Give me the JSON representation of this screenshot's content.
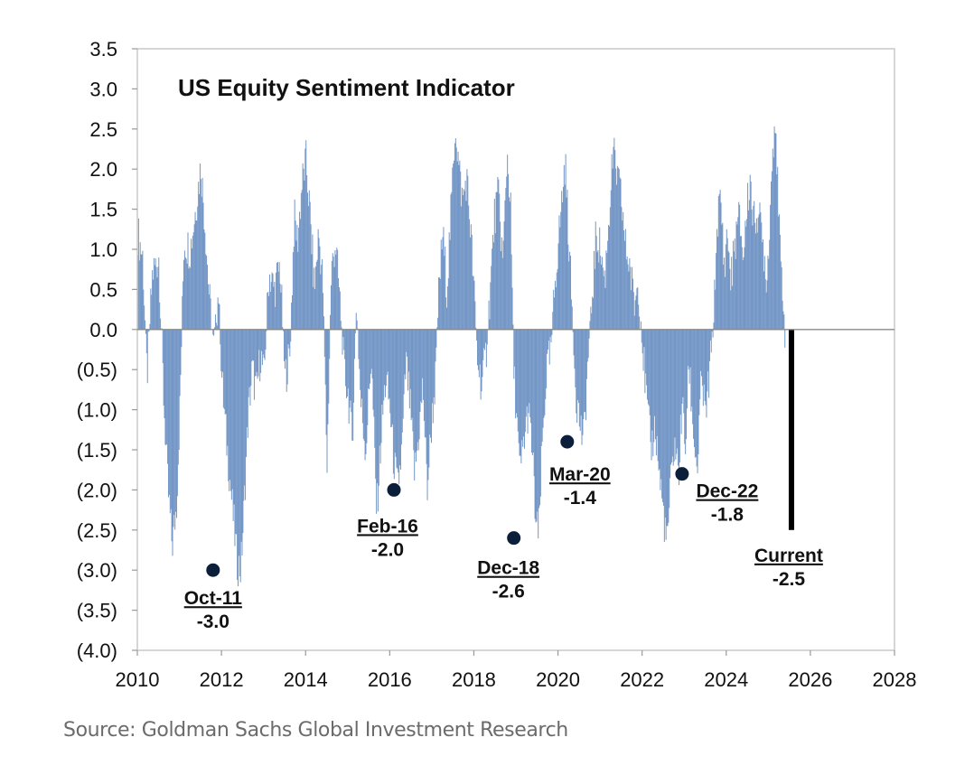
{
  "chart_data": {
    "type": "bar",
    "title": "US Equity Sentiment Indicator",
    "xlabel": "",
    "ylabel": "",
    "xlim": [
      2010,
      2028
    ],
    "ylim": [
      -4.0,
      3.5
    ],
    "x_ticks": [
      "2010",
      "2012",
      "2014",
      "2016",
      "2018",
      "2020",
      "2022",
      "2024",
      "2026",
      "2028"
    ],
    "y_ticks": [
      {
        "value": 3.5,
        "label": "3.5"
      },
      {
        "value": 3.0,
        "label": "3.0"
      },
      {
        "value": 2.5,
        "label": "2.5"
      },
      {
        "value": 2.0,
        "label": "2.0"
      },
      {
        "value": 1.5,
        "label": "1.5"
      },
      {
        "value": 1.0,
        "label": "1.0"
      },
      {
        "value": 0.5,
        "label": "0.5"
      },
      {
        "value": 0.0,
        "label": "0.0"
      },
      {
        "value": -0.5,
        "label": "(0.5)"
      },
      {
        "value": -1.0,
        "label": "(1.0)"
      },
      {
        "value": -1.5,
        "label": "(1.5)"
      },
      {
        "value": -2.0,
        "label": "(2.0)"
      },
      {
        "value": -2.5,
        "label": "(2.5)"
      },
      {
        "value": -3.0,
        "label": "(3.0)"
      },
      {
        "value": -3.5,
        "label": "(3.5)"
      },
      {
        "value": -4.0,
        "label": "(4.0)"
      }
    ],
    "grid": false,
    "series_color": "#7396c6",
    "current_bar_color": "#000000",
    "marker_color": "#0b1f3a",
    "series_keypoints": [
      [
        2010.0,
        1.2
      ],
      [
        2010.12,
        0.9
      ],
      [
        2010.22,
        -0.6
      ],
      [
        2010.35,
        0.7
      ],
      [
        2010.5,
        0.9
      ],
      [
        2010.62,
        -0.9
      ],
      [
        2010.72,
        -2.0
      ],
      [
        2010.82,
        -2.7
      ],
      [
        2010.92,
        -2.2
      ],
      [
        2011.0,
        -1.0
      ],
      [
        2011.1,
        1.1
      ],
      [
        2011.25,
        1.0
      ],
      [
        2011.4,
        1.6
      ],
      [
        2011.5,
        2.05
      ],
      [
        2011.6,
        1.3
      ],
      [
        2011.7,
        0.4
      ],
      [
        2011.8,
        -0.2
      ],
      [
        2011.92,
        0.5
      ],
      [
        2012.0,
        -0.6
      ],
      [
        2012.08,
        -1.2
      ],
      [
        2012.18,
        -1.8
      ],
      [
        2012.28,
        -2.4
      ],
      [
        2012.36,
        -2.9
      ],
      [
        2012.45,
        -3.0
      ],
      [
        2012.53,
        -2.2
      ],
      [
        2012.62,
        -1.1
      ],
      [
        2012.72,
        -0.5
      ],
      [
        2012.82,
        -0.8
      ],
      [
        2012.92,
        -0.3
      ],
      [
        2013.0,
        -0.6
      ],
      [
        2013.12,
        0.7
      ],
      [
        2013.25,
        0.5
      ],
      [
        2013.38,
        0.8
      ],
      [
        2013.5,
        -0.6
      ],
      [
        2013.62,
        -0.3
      ],
      [
        2013.72,
        1.4
      ],
      [
        2013.8,
        1.1
      ],
      [
        2013.9,
        1.8
      ],
      [
        2014.0,
        2.1
      ],
      [
        2014.1,
        1.4
      ],
      [
        2014.2,
        0.5
      ],
      [
        2014.3,
        1.2
      ],
      [
        2014.4,
        0.6
      ],
      [
        2014.5,
        -1.7
      ],
      [
        2014.6,
        0.7
      ],
      [
        2014.7,
        1.1
      ],
      [
        2014.8,
        0.4
      ],
      [
        2014.9,
        -0.5
      ],
      [
        2015.0,
        -0.8
      ],
      [
        2015.1,
        -1.4
      ],
      [
        2015.2,
        0.4
      ],
      [
        2015.3,
        -0.9
      ],
      [
        2015.42,
        -1.5
      ],
      [
        2015.55,
        -0.3
      ],
      [
        2015.68,
        -2.3
      ],
      [
        2015.8,
        -1.2
      ],
      [
        2015.9,
        -0.6
      ],
      [
        2016.0,
        -1.0
      ],
      [
        2016.08,
        -1.6
      ],
      [
        2016.18,
        -2.0
      ],
      [
        2016.28,
        -1.5
      ],
      [
        2016.38,
        -0.4
      ],
      [
        2016.48,
        -1.0
      ],
      [
        2016.58,
        -1.8
      ],
      [
        2016.68,
        -1.3
      ],
      [
        2016.78,
        -0.7
      ],
      [
        2016.88,
        -2.0
      ],
      [
        2016.98,
        -1.2
      ],
      [
        2017.08,
        -0.6
      ],
      [
        2017.15,
        0.4
      ],
      [
        2017.25,
        1.2
      ],
      [
        2017.35,
        0.5
      ],
      [
        2017.45,
        1.5
      ],
      [
        2017.55,
        2.6
      ],
      [
        2017.62,
        2.1
      ],
      [
        2017.72,
        1.6
      ],
      [
        2017.82,
        1.9
      ],
      [
        2017.92,
        1.2
      ],
      [
        2018.0,
        0.4
      ],
      [
        2018.08,
        -0.4
      ],
      [
        2018.18,
        -0.7
      ],
      [
        2018.28,
        -0.3
      ],
      [
        2018.38,
        0.5
      ],
      [
        2018.48,
        1.4
      ],
      [
        2018.58,
        1.7
      ],
      [
        2018.68,
        0.8
      ],
      [
        2018.78,
        2.2
      ],
      [
        2018.86,
        1.6
      ],
      [
        2018.94,
        -0.5
      ],
      [
        2019.0,
        -1.0
      ],
      [
        2019.08,
        -1.8
      ],
      [
        2019.18,
        -1.4
      ],
      [
        2019.28,
        -1.0
      ],
      [
        2019.38,
        -1.5
      ],
      [
        2019.46,
        -2.4
      ],
      [
        2019.53,
        -2.6
      ],
      [
        2019.62,
        -1.4
      ],
      [
        2019.72,
        -0.5
      ],
      [
        2019.82,
        -0.3
      ],
      [
        2019.92,
        0.6
      ],
      [
        2020.0,
        1.1
      ],
      [
        2020.08,
        1.6
      ],
      [
        2020.16,
        2.1
      ],
      [
        2020.24,
        1.2
      ],
      [
        2020.32,
        0.3
      ],
      [
        2020.42,
        -0.8
      ],
      [
        2020.52,
        -1.2
      ],
      [
        2020.6,
        -1.4
      ],
      [
        2020.7,
        -0.4
      ],
      [
        2020.8,
        0.4
      ],
      [
        2020.9,
        1.2
      ],
      [
        2021.0,
        1.0
      ],
      [
        2021.1,
        0.6
      ],
      [
        2021.2,
        1.4
      ],
      [
        2021.3,
        2.2
      ],
      [
        2021.4,
        1.9
      ],
      [
        2021.5,
        1.6
      ],
      [
        2021.6,
        1.0
      ],
      [
        2021.7,
        0.8
      ],
      [
        2021.8,
        0.3
      ],
      [
        2021.9,
        0.6
      ],
      [
        2022.0,
        -0.2
      ],
      [
        2022.1,
        -0.9
      ],
      [
        2022.2,
        -1.5
      ],
      [
        2022.3,
        -1.2
      ],
      [
        2022.4,
        -1.8
      ],
      [
        2022.5,
        -2.3
      ],
      [
        2022.58,
        -2.7
      ],
      [
        2022.66,
        -2.0
      ],
      [
        2022.76,
        -1.4
      ],
      [
        2022.86,
        -1.8
      ],
      [
        2022.94,
        -0.9
      ],
      [
        2023.02,
        -1.5
      ],
      [
        2023.1,
        -0.4
      ],
      [
        2023.2,
        -1.2
      ],
      [
        2023.3,
        -1.8
      ],
      [
        2023.4,
        -0.6
      ],
      [
        2023.5,
        -1.1
      ],
      [
        2023.6,
        -0.5
      ],
      [
        2023.7,
        0.2
      ],
      [
        2023.78,
        1.4
      ],
      [
        2023.86,
        1.6
      ],
      [
        2023.94,
        0.8
      ],
      [
        2024.02,
        1.2
      ],
      [
        2024.1,
        0.6
      ],
      [
        2024.2,
        1.1
      ],
      [
        2024.3,
        1.4
      ],
      [
        2024.4,
        0.9
      ],
      [
        2024.48,
        1.5
      ],
      [
        2024.56,
        1.9
      ],
      [
        2024.64,
        1.3
      ],
      [
        2024.72,
        1.5
      ],
      [
        2024.8,
        1.3
      ],
      [
        2024.88,
        1.0
      ],
      [
        2024.96,
        0.6
      ],
      [
        2025.04,
        1.6
      ],
      [
        2025.1,
        2.3
      ],
      [
        2025.16,
        2.75
      ],
      [
        2025.22,
        1.6
      ],
      [
        2025.28,
        0.8
      ],
      [
        2025.34,
        0.5
      ],
      [
        2025.4,
        -0.3
      ]
    ],
    "current_bar": {
      "x": 2025.55,
      "value": -2.5
    },
    "annotations": [
      {
        "label": "Oct-11",
        "value_text": "-3.0",
        "x": 2011.8,
        "y": -3.0
      },
      {
        "label": "Feb-16",
        "value_text": "-2.0",
        "x": 2016.1,
        "y": -2.0
      },
      {
        "label": "Dec-18",
        "value_text": "-2.6",
        "x": 2018.95,
        "y": -2.6
      },
      {
        "label": "Mar-20",
        "value_text": "-1.4",
        "x": 2020.22,
        "y": -1.4
      },
      {
        "label": "Dec-22",
        "value_text": "-1.8",
        "x": 2022.95,
        "y": -1.8
      },
      {
        "label": "Current",
        "value_text": "-2.5",
        "x": 2025.55,
        "y": -2.5
      }
    ]
  },
  "source": "Source: Goldman Sachs Global Investment Research"
}
